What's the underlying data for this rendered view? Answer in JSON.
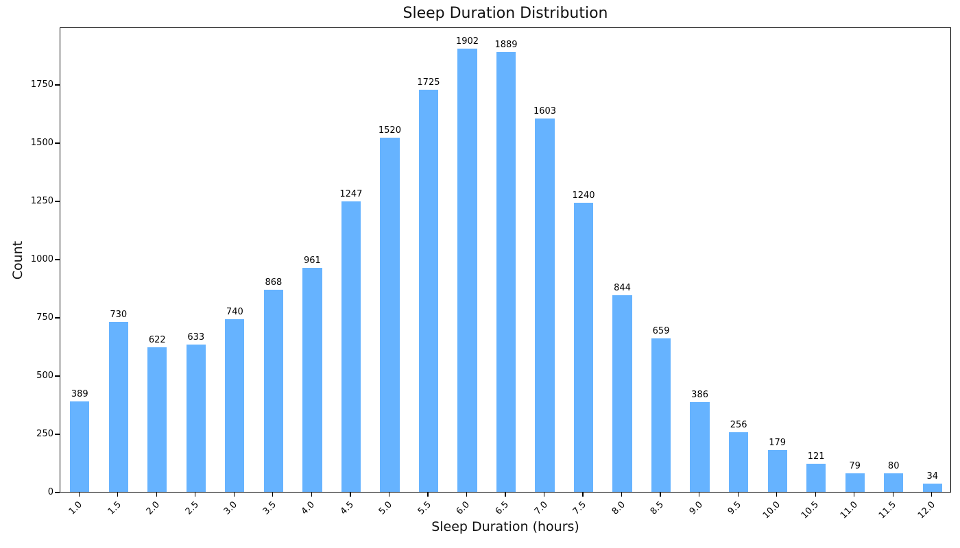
{
  "chart_data": {
    "type": "bar",
    "title": "Sleep Duration Distribution",
    "xlabel": "Sleep Duration (hours)",
    "ylabel": "Count",
    "categories": [
      "1.0",
      "1.5",
      "2.0",
      "2.5",
      "3.0",
      "3.5",
      "4.0",
      "4.5",
      "5.0",
      "5.5",
      "6.0",
      "6.5",
      "7.0",
      "7.5",
      "8.0",
      "8.5",
      "9.0",
      "9.5",
      "10.0",
      "10.5",
      "11.0",
      "11.5",
      "12.0"
    ],
    "values": [
      389,
      730,
      622,
      633,
      740,
      868,
      961,
      1247,
      1520,
      1725,
      1902,
      1889,
      1603,
      1240,
      844,
      659,
      386,
      256,
      179,
      121,
      79,
      80,
      34
    ],
    "yticks": [
      0,
      250,
      500,
      750,
      1000,
      1250,
      1500,
      1750
    ],
    "ylim": [
      0,
      1997
    ],
    "bar_color": "#66b3ff",
    "grid": false,
    "legend_position": "none",
    "bar_value_labels": true,
    "x_tick_rotation_deg": 45
  }
}
